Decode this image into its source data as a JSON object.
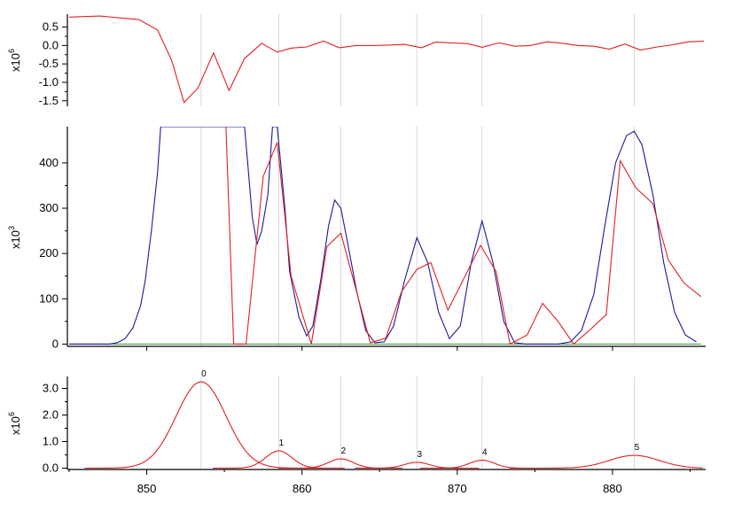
{
  "chart_data": [
    {
      "type": "line",
      "panel": "residual",
      "ylabel_base": "x10",
      "ylabel_exp": "6",
      "xlim": [
        845,
        886
      ],
      "ylim": [
        -1.65,
        0.85
      ],
      "yticks": [
        -1.5,
        -1.0,
        -0.5,
        0.0,
        0.5
      ],
      "ytick_labels": [
        "-1.5",
        "-1.0",
        "-0.5",
        "0.0",
        "0.5"
      ],
      "colors": {
        "residual": "#e02020",
        "grid": "#d8d8d8"
      },
      "series": [
        {
          "x": [
            845,
            847,
            849.5,
            850.7,
            851.6,
            852.4,
            853.3,
            854.3,
            855.3,
            856.3,
            857.4,
            858.4,
            859.3,
            860.3,
            861.4,
            862.4,
            863.5,
            864.5,
            865.6,
            866.6,
            867.7,
            868.6,
            870.7,
            871.6,
            872.7,
            873.7,
            874.7,
            875.8,
            876.8,
            877.8,
            878.8,
            879.8,
            880.8,
            881.8,
            882.9,
            883.9,
            884.9,
            885.9
          ],
          "y": [
            0.77,
            0.8,
            0.7,
            0.42,
            -0.4,
            -1.55,
            -1.15,
            -0.2,
            -1.22,
            -0.35,
            0.06,
            -0.18,
            -0.07,
            -0.04,
            0.12,
            -0.06,
            0.0,
            0.0,
            0.01,
            0.03,
            -0.06,
            0.09,
            0.05,
            -0.05,
            0.07,
            -0.02,
            0.0,
            0.1,
            0.06,
            0.0,
            -0.02,
            -0.1,
            0.04,
            -0.12,
            -0.04,
            0.02,
            0.1,
            0.12
          ]
        }
      ]
    },
    {
      "type": "line",
      "panel": "fit",
      "ylabel_base": "x10",
      "ylabel_exp": "3",
      "xlim": [
        845,
        886
      ],
      "ylim": [
        -5,
        480
      ],
      "yticks": [
        0,
        100,
        200,
        300,
        400
      ],
      "ytick_labels": [
        "0",
        "100",
        "200",
        "300",
        "400"
      ],
      "colors": {
        "fit": "#1a1a9c",
        "data": "#e02020",
        "baseline": "#2c9c2c",
        "grid": "#d8d8d8"
      },
      "vertical_grid_x": [
        853.5,
        858.5,
        862.5,
        867.4,
        871.6,
        881.4
      ],
      "series": [
        {
          "role": "fit",
          "x": [
            845,
            847.6,
            848.1,
            848.6,
            849.1,
            849.6,
            849.9,
            850.3,
            850.7,
            850.9,
            851.2,
            856.3,
            856.5,
            856.8,
            857.1,
            857.4,
            857.8,
            858.1,
            858.4,
            858.9,
            859.2,
            859.8,
            860.3,
            860.7,
            861.2,
            861.7,
            862.1,
            862.5,
            862.9,
            863.5,
            864.1,
            864.7,
            865.3,
            865.9,
            866.6,
            867.4,
            868.1,
            868.8,
            869.5,
            870.2,
            870.9,
            871.6,
            872.3,
            873.0,
            873.7,
            874.4,
            875.5,
            876.5,
            877.3,
            878.0,
            878.8,
            879.5,
            880.2,
            880.9,
            881.4,
            881.9,
            882.6,
            883.3,
            884.0,
            884.7,
            885.4
          ],
          "y": [
            0,
            0,
            3,
            12,
            35,
            85,
            140,
            250,
            380,
            480,
            480,
            480,
            400,
            280,
            220,
            250,
            330,
            480,
            480,
            300,
            160,
            60,
            18,
            40,
            140,
            260,
            318,
            300,
            230,
            120,
            30,
            3,
            5,
            40,
            140,
            235,
            180,
            70,
            12,
            40,
            180,
            272,
            180,
            50,
            3,
            0,
            0,
            0,
            5,
            30,
            110,
            260,
            400,
            460,
            470,
            440,
            330,
            180,
            70,
            20,
            5
          ]
        },
        {
          "role": "data",
          "x": [
            855.1,
            855.6,
            856.4,
            857.5,
            858.4,
            859.3,
            860.6,
            861.6,
            862.5,
            864.4,
            865.4,
            866.4,
            867.4,
            868.3,
            869.4,
            870.5,
            871.5,
            872.5,
            873.4,
            874.5,
            875.5,
            876.5,
            877.5,
            878.5,
            879.6,
            880.5,
            881.5,
            882.6,
            883.6,
            884.6,
            885.7
          ],
          "y": [
            480,
            0,
            0,
            370,
            445,
            150,
            0,
            215,
            245,
            3,
            13,
            115,
            165,
            180,
            75,
            150,
            218,
            160,
            0,
            20,
            90,
            50,
            0,
            30,
            65,
            405,
            345,
            310,
            185,
            135,
            105
          ]
        },
        {
          "role": "baseline",
          "x": [
            845,
            885.7
          ],
          "y": [
            0,
            0
          ]
        }
      ]
    },
    {
      "type": "line",
      "panel": "peaks",
      "ylabel_base": "x10",
      "ylabel_exp": "6",
      "xlabel": "",
      "xlim": [
        845,
        886
      ],
      "ylim": [
        -0.05,
        3.45
      ],
      "yticks": [
        0.0,
        1.0,
        2.0,
        3.0
      ],
      "ytick_labels": [
        "0.0",
        "1.0",
        "2.0",
        "3.0"
      ],
      "xticks": [
        850,
        860,
        870,
        880
      ],
      "xtick_labels": [
        "850",
        "860",
        "870",
        "880"
      ],
      "colors": {
        "peaks": "#e02020",
        "grid": "#d8d8d8"
      },
      "peaks": [
        {
          "label": "0",
          "center": 853.5,
          "height": 3.25,
          "sigma": 1.6
        },
        {
          "label": "1",
          "center": 858.5,
          "height": 0.65,
          "sigma": 0.85
        },
        {
          "label": "2",
          "center": 862.5,
          "height": 0.35,
          "sigma": 0.8
        },
        {
          "label": "3",
          "center": 867.4,
          "height": 0.22,
          "sigma": 0.8
        },
        {
          "label": "4",
          "center": 871.6,
          "height": 0.3,
          "sigma": 0.8
        },
        {
          "label": "5",
          "center": 881.4,
          "height": 0.48,
          "sigma": 1.6
        }
      ]
    }
  ]
}
